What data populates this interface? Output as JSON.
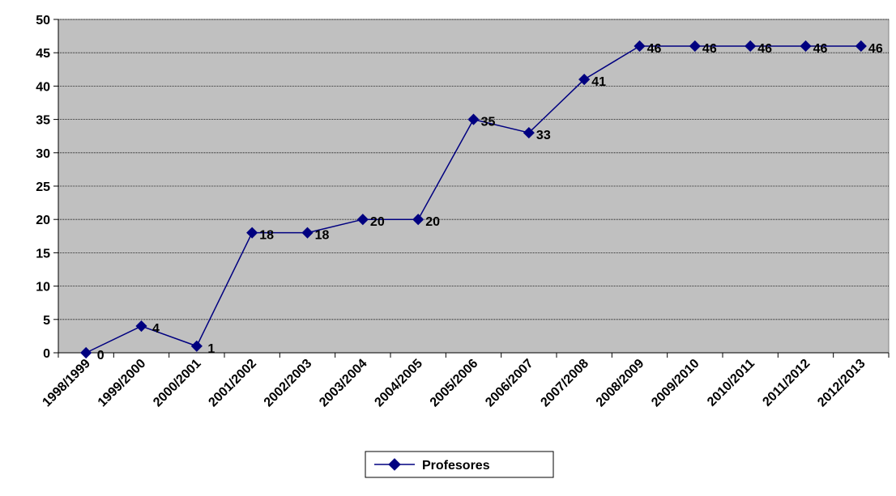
{
  "chart_data": {
    "type": "line",
    "title": "",
    "xlabel": "",
    "ylabel": "",
    "categories": [
      "1998/1999",
      "1999/2000",
      "2000/2001",
      "2001/2002",
      "2002/2003",
      "2003/2004",
      "2004/2005",
      "2005/2006",
      "2006/2007",
      "2007/2008",
      "2008/2009",
      "2009/2010",
      "2010/2011",
      "2011/2012",
      "2012/2013"
    ],
    "series": [
      {
        "name": "Profesores",
        "values": [
          0,
          4,
          1,
          18,
          18,
          20,
          20,
          35,
          33,
          41,
          46,
          46,
          46,
          46,
          46
        ],
        "color": "#000080"
      }
    ],
    "ylim": [
      0,
      50
    ],
    "yticks": [
      0,
      5,
      10,
      15,
      20,
      25,
      30,
      35,
      40,
      45,
      50
    ],
    "grid": true,
    "legend_position": "bottom-center",
    "plot_background": "#c0c0c0"
  }
}
